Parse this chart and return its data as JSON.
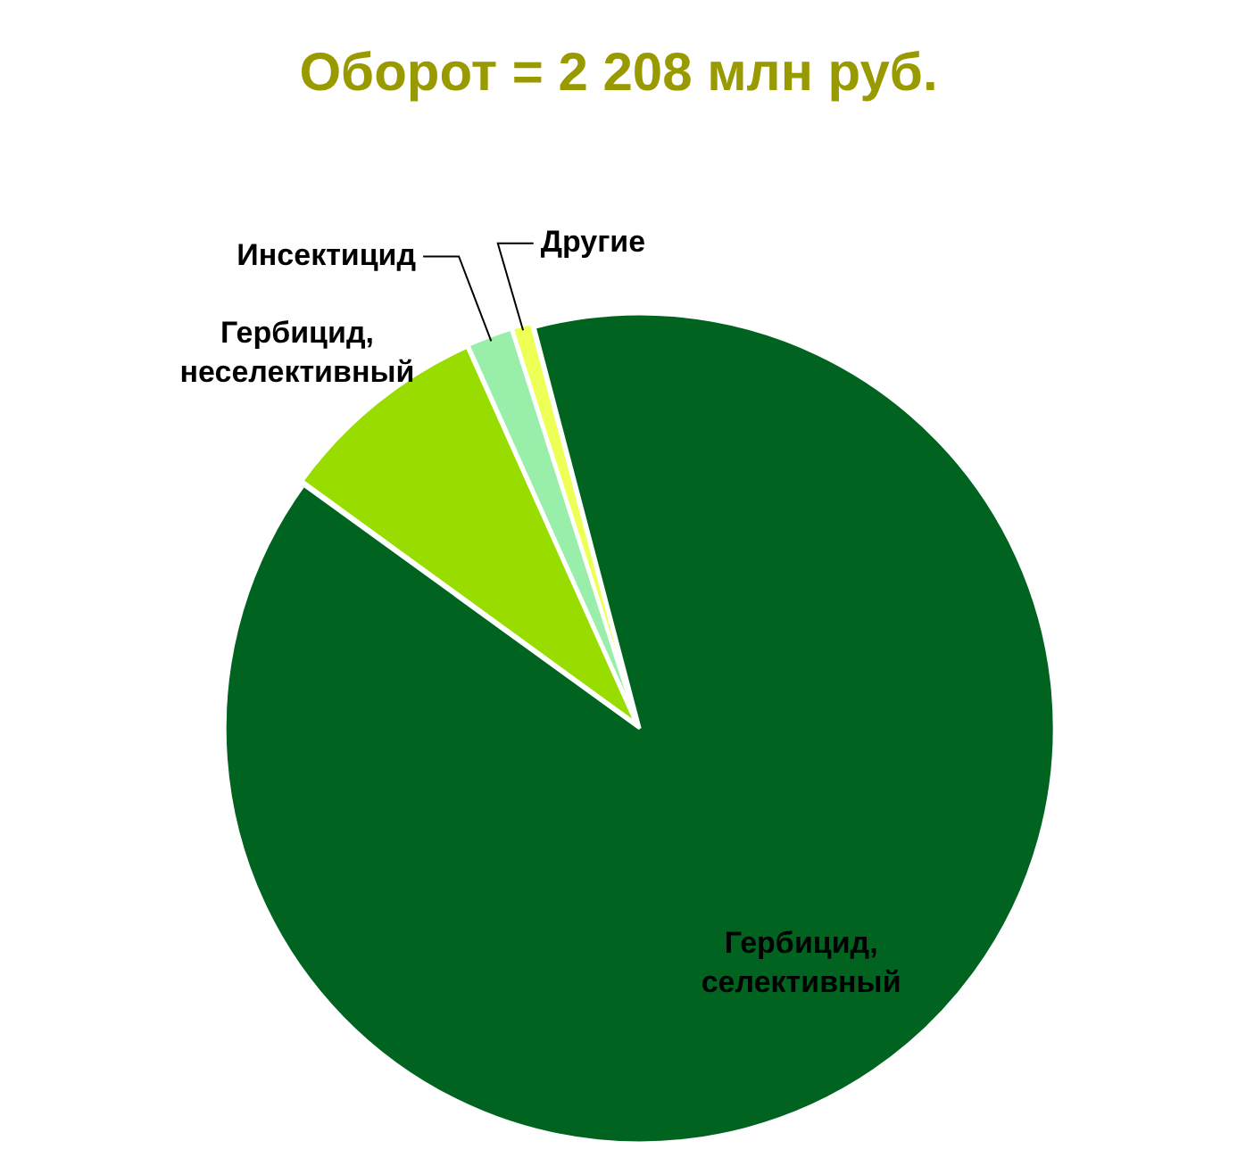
{
  "chart_data": {
    "type": "pie",
    "title": "Оборот = 2 208 млн руб.",
    "categories": [
      "Гербицид, неселективный",
      "Инсектицид",
      "Другие",
      "Гербицид, селективный"
    ],
    "values": [
      8.3,
      1.8,
      0.8,
      89.1
    ],
    "colors": [
      "#99dd00",
      "#99eeaa",
      "#eeff55",
      "#006420"
    ],
    "legend": false
  }
}
